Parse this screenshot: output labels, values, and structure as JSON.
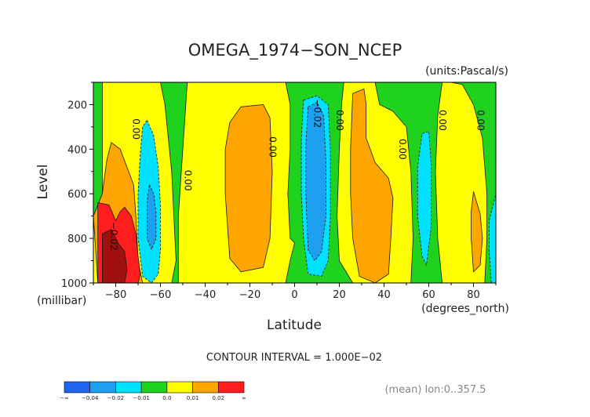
{
  "chart_data": {
    "type": "heatmap",
    "title": "OMEGA_1974−SON_NCEP",
    "units_label": "(units:Pascal/s)",
    "xlabel": "Latitude",
    "x_units": "(degrees_north)",
    "ylabel": "Level",
    "y_units": "(millibar)",
    "xlim": [
      -90,
      90
    ],
    "ylim": [
      1000,
      100
    ],
    "x_ticks": [
      -80,
      -60,
      -40,
      -20,
      0,
      20,
      40,
      60,
      80
    ],
    "x_tick_labels": [
      "−80",
      "−60",
      "−40",
      "−20",
      "0",
      "20",
      "40",
      "60",
      "80"
    ],
    "y_ticks": [
      200,
      400,
      600,
      800,
      1000
    ],
    "y_tick_labels": [
      "200",
      "400",
      "600",
      "800",
      "1000"
    ],
    "contour_interval_label": "CONTOUR INTERVAL = 1.000E−02",
    "mean_label": "(mean) lon:0..357.5",
    "colorbar": {
      "colors": [
        "#1e64f0",
        "#1ea0f0",
        "#00e1ff",
        "#1ed21e",
        "#ffff00",
        "#ffa500",
        "#ff1e1e"
      ],
      "tick_labels": [
        "−∞",
        "−0.04",
        "−0.02",
        "−0.01",
        "0.0",
        "0.01",
        "0.02",
        "∞"
      ]
    },
    "contour_labels": [
      {
        "text": "0.00",
        "lat": -71,
        "level": 310
      },
      {
        "text": "−0.02",
        "lat": -81,
        "level": 790
      },
      {
        "text": "0.00",
        "lat": -48,
        "level": 540
      },
      {
        "text": "0.00",
        "lat": -10,
        "level": 390
      },
      {
        "text": "−0.02",
        "lat": 10,
        "level": 240
      },
      {
        "text": "0.00",
        "lat": 20,
        "level": 270
      },
      {
        "text": "0.00",
        "lat": 48,
        "level": 400
      },
      {
        "text": "0.00",
        "lat": 66,
        "level": 270
      },
      {
        "text": "0.00",
        "lat": 83,
        "level": 270
      }
    ],
    "regions": [
      {
        "value": 0.005,
        "color": "#ffff00",
        "pts": [
          [
            -86,
            100
          ],
          [
            -60,
            100
          ],
          [
            -58,
            200
          ],
          [
            -55,
            500
          ],
          [
            -53,
            900
          ],
          [
            -55,
            1000
          ],
          [
            -90,
            1000
          ],
          [
            -90,
            700
          ],
          [
            -86,
            600
          ]
        ]
      },
      {
        "value": 0.015,
        "color": "#ffa500",
        "pts": [
          [
            -86,
            600
          ],
          [
            -84,
            450
          ],
          [
            -82,
            370
          ],
          [
            -78,
            400
          ],
          [
            -75,
            480
          ],
          [
            -72,
            560
          ],
          [
            -71,
            700
          ],
          [
            -70,
            900
          ],
          [
            -68,
            1000
          ],
          [
            -88,
            1000
          ],
          [
            -90,
            700
          ]
        ]
      },
      {
        "value": 0.025,
        "color": "#ff1e1e",
        "pts": [
          [
            -88,
            640
          ],
          [
            -83,
            650
          ],
          [
            -80,
            720
          ],
          [
            -78,
            680
          ],
          [
            -76,
            660
          ],
          [
            -73,
            700
          ],
          [
            -71,
            780
          ],
          [
            -70,
            880
          ],
          [
            -69,
            960
          ],
          [
            -70,
            1000
          ],
          [
            -88,
            1000
          ]
        ]
      },
      {
        "value": 0.035,
        "color": "#a01010",
        "pts": [
          [
            -86,
            780
          ],
          [
            -82,
            760
          ],
          [
            -79,
            820
          ],
          [
            -76,
            860
          ],
          [
            -75,
            940
          ],
          [
            -76,
            1000
          ],
          [
            -86,
            1000
          ]
        ]
      },
      {
        "value": -0.005,
        "color": "#00e1ff",
        "pts": [
          [
            -66,
            270
          ],
          [
            -63,
            340
          ],
          [
            -61,
            480
          ],
          [
            -60,
            650
          ],
          [
            -60,
            850
          ],
          [
            -61,
            960
          ],
          [
            -64,
            1000
          ],
          [
            -68,
            970
          ],
          [
            -70,
            800
          ],
          [
            -70,
            600
          ],
          [
            -69,
            420
          ],
          [
            -68,
            300
          ]
        ]
      },
      {
        "value": -0.015,
        "color": "#1ea0f0",
        "pts": [
          [
            -65,
            560
          ],
          [
            -63,
            600
          ],
          [
            -62,
            680
          ],
          [
            -62,
            800
          ],
          [
            -64,
            850
          ],
          [
            -66,
            800
          ],
          [
            -66,
            640
          ]
        ]
      },
      {
        "value": 0.005,
        "color": "#ffff00",
        "pts": [
          [
            -48,
            100
          ],
          [
            -4,
            100
          ],
          [
            -2,
            200
          ],
          [
            -2,
            400
          ],
          [
            -3,
            600
          ],
          [
            -2,
            800
          ],
          [
            0,
            820
          ],
          [
            -2,
            900
          ],
          [
            -4,
            1000
          ],
          [
            -52,
            1000
          ],
          [
            -52,
            700
          ],
          [
            -50,
            400
          ]
        ]
      },
      {
        "value": 0.015,
        "color": "#ffa500",
        "pts": [
          [
            -29,
            280
          ],
          [
            -24,
            210
          ],
          [
            -14,
            200
          ],
          [
            -11,
            260
          ],
          [
            -10,
            500
          ],
          [
            -11,
            800
          ],
          [
            -14,
            930
          ],
          [
            -24,
            950
          ],
          [
            -29,
            890
          ],
          [
            -31,
            600
          ],
          [
            -31,
            400
          ]
        ]
      },
      {
        "value": 0.005,
        "color": "#ffff00",
        "pts": [
          [
            22,
            100
          ],
          [
            26,
            100
          ],
          [
            36,
            100
          ],
          [
            38,
            200
          ],
          [
            44,
            230
          ],
          [
            50,
            300
          ],
          [
            52,
            500
          ],
          [
            53,
            800
          ],
          [
            52,
            1000
          ],
          [
            26,
            1000
          ],
          [
            20,
            900
          ],
          [
            19,
            700
          ],
          [
            20,
            400
          ],
          [
            21,
            200
          ]
        ]
      },
      {
        "value": 0.015,
        "color": "#ffa500",
        "pts": [
          [
            26,
            150
          ],
          [
            31,
            130
          ],
          [
            32,
            200
          ],
          [
            32,
            350
          ],
          [
            36,
            460
          ],
          [
            42,
            530
          ],
          [
            44,
            620
          ],
          [
            43,
            800
          ],
          [
            42,
            960
          ],
          [
            36,
            1000
          ],
          [
            29,
            970
          ],
          [
            26,
            800
          ],
          [
            25,
            600
          ],
          [
            25,
            400
          ]
        ]
      },
      {
        "value": 0.005,
        "color": "#ffff00",
        "pts": [
          [
            66,
            100
          ],
          [
            70,
            100
          ],
          [
            75,
            110
          ],
          [
            80,
            200
          ],
          [
            84,
            350
          ],
          [
            86,
            600
          ],
          [
            86,
            800
          ],
          [
            85,
            1000
          ],
          [
            66,
            1000
          ],
          [
            64,
            800
          ],
          [
            63,
            500
          ],
          [
            64,
            250
          ]
        ]
      },
      {
        "value": 0.015,
        "color": "#ffa500",
        "pts": [
          [
            80,
            590
          ],
          [
            83,
            690
          ],
          [
            84,
            800
          ],
          [
            83,
            920
          ],
          [
            80,
            950
          ],
          [
            79,
            800
          ],
          [
            79,
            680
          ]
        ]
      },
      {
        "value": -0.005,
        "color": "#00e1ff",
        "pts": [
          [
            4,
            180
          ],
          [
            10,
            160
          ],
          [
            15,
            200
          ],
          [
            16,
            400
          ],
          [
            16,
            700
          ],
          [
            15,
            900
          ],
          [
            12,
            970
          ],
          [
            6,
            960
          ],
          [
            4,
            800
          ],
          [
            3,
            600
          ],
          [
            3,
            350
          ]
        ]
      },
      {
        "value": -0.015,
        "color": "#1ea0f0",
        "pts": [
          [
            6,
            210
          ],
          [
            10,
            190
          ],
          [
            13,
            250
          ],
          [
            14,
            450
          ],
          [
            14,
            700
          ],
          [
            12,
            860
          ],
          [
            9,
            900
          ],
          [
            6,
            850
          ],
          [
            5,
            600
          ],
          [
            5,
            380
          ]
        ]
      },
      {
        "value": -0.005,
        "color": "#00e1ff",
        "pts": [
          [
            57,
            330
          ],
          [
            60,
            320
          ],
          [
            61,
            460
          ],
          [
            61,
            750
          ],
          [
            59,
            920
          ],
          [
            57,
            880
          ],
          [
            55,
            700
          ],
          [
            55,
            480
          ]
        ]
      },
      {
        "value": -0.005,
        "color": "#00e1ff",
        "pts": [
          [
            87,
            720
          ],
          [
            90,
            600
          ],
          [
            90,
            1000
          ],
          [
            88,
            1000
          ],
          [
            87,
            860
          ]
        ]
      }
    ]
  }
}
